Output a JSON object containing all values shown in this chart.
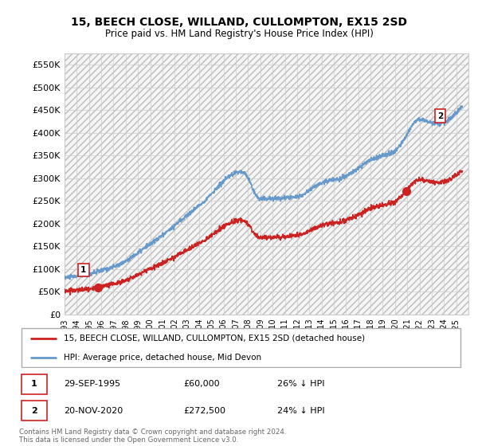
{
  "title": "15, BEECH CLOSE, WILLAND, CULLOMPTON, EX15 2SD",
  "subtitle": "Price paid vs. HM Land Registry's House Price Index (HPI)",
  "ylim": [
    0,
    575000
  ],
  "yticks": [
    0,
    50000,
    100000,
    150000,
    200000,
    250000,
    300000,
    350000,
    400000,
    450000,
    500000,
    550000
  ],
  "ytick_labels": [
    "£0",
    "£50K",
    "£100K",
    "£150K",
    "£200K",
    "£250K",
    "£300K",
    "£350K",
    "£400K",
    "£450K",
    "£500K",
    "£550K"
  ],
  "xlim_start": 1993.0,
  "xlim_end": 2026.0,
  "hpi_color": "#6699cc",
  "price_color": "#cc2222",
  "background_color": "#ffffff",
  "grid_color": "#cccccc",
  "legend_label_price": "15, BEECH CLOSE, WILLAND, CULLOMPTON, EX15 2SD (detached house)",
  "legend_label_hpi": "HPI: Average price, detached house, Mid Devon",
  "annotation1_label": "1",
  "annotation1_date": "29-SEP-1995",
  "annotation1_price": "£60,000",
  "annotation1_pct": "26% ↓ HPI",
  "annotation2_label": "2",
  "annotation2_date": "20-NOV-2020",
  "annotation2_price": "£272,500",
  "annotation2_pct": "24% ↓ HPI",
  "footnote": "Contains HM Land Registry data © Crown copyright and database right 2024.\nThis data is licensed under the Open Government Licence v3.0.",
  "sale1_x": 1995.75,
  "sale1_y": 60000,
  "sale2_x": 2020.9,
  "sale2_y": 272500,
  "hpi_key_years": [
    1993,
    1997,
    2000,
    2004,
    2007.5,
    2009,
    2012,
    2014,
    2016,
    2018,
    2020,
    2022,
    2023.5,
    2025.5
  ],
  "hpi_key_vals": [
    82000,
    105000,
    155000,
    240000,
    315000,
    255000,
    260000,
    290000,
    305000,
    340000,
    360000,
    430000,
    420000,
    460000
  ]
}
